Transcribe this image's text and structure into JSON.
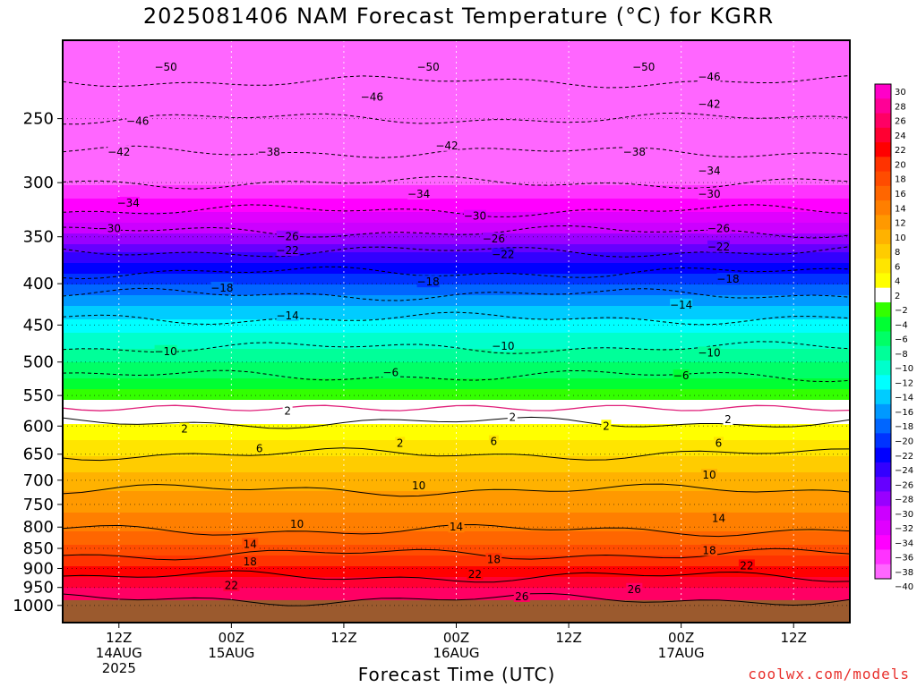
{
  "title": "2025081406 NAM Forecast Temperature (°C) for KGRR",
  "xlabel": "Forecast Time (UTC)",
  "credit": "coolwx.com/models",
  "chart_data": {
    "type": "heatmap",
    "title": "2025081406 NAM Forecast Temperature (°C) for KGRR",
    "xlabel": "Forecast Time (UTC)",
    "ylabel": "",
    "y_axis": {
      "scale": "log-pressure",
      "ylim_hpa": [
        1050,
        200
      ],
      "ticks": [
        250,
        300,
        350,
        400,
        450,
        500,
        550,
        600,
        650,
        700,
        750,
        800,
        850,
        900,
        950,
        1000
      ]
    },
    "x_axis": {
      "range_forecast_hours": [
        0,
        84
      ],
      "ticks": [
        {
          "hour": 6,
          "lines": [
            "12Z",
            "14AUG",
            "2025"
          ]
        },
        {
          "hour": 18,
          "lines": [
            "00Z",
            "15AUG"
          ]
        },
        {
          "hour": 30,
          "lines": [
            "12Z"
          ]
        },
        {
          "hour": 42,
          "lines": [
            "00Z",
            "16AUG"
          ]
        },
        {
          "hour": 54,
          "lines": [
            "12Z"
          ]
        },
        {
          "hour": 66,
          "lines": [
            "00Z",
            "17AUG"
          ]
        },
        {
          "hour": 78,
          "lines": [
            "12Z"
          ]
        }
      ]
    },
    "grid": true,
    "colorbar": {
      "placement": "right",
      "levels": [
        30,
        28,
        26,
        24,
        22,
        20,
        18,
        16,
        14,
        12,
        10,
        8,
        6,
        4,
        2,
        -2,
        -4,
        -6,
        -8,
        -10,
        -12,
        -14,
        -16,
        -18,
        -20,
        -22,
        -24,
        -26,
        -28,
        -30,
        -32,
        -34,
        -36,
        -38,
        -40
      ],
      "colors": [
        "#ff00c8",
        "#ff0096",
        "#ff0064",
        "#ff0032",
        "#ff0000",
        "#ff3300",
        "#ff4c00",
        "#ff6600",
        "#ff7f00",
        "#ff9900",
        "#ffb200",
        "#ffcc00",
        "#ffe500",
        "#ffff00",
        "#ffffff",
        "#33ff00",
        "#00ff33",
        "#00ff66",
        "#00ff99",
        "#00ffcc",
        "#00ffff",
        "#00ccff",
        "#0099ff",
        "#0066ff",
        "#0033ff",
        "#0000ff",
        "#3300ff",
        "#6600ff",
        "#9900ff",
        "#cc00ff",
        "#e000ff",
        "#ff00ff",
        "#ff33ff",
        "#ff66ff"
      ]
    },
    "temperature_profile": [
      {
        "p": 200,
        "t": -54
      },
      {
        "p": 225,
        "t": -50
      },
      {
        "p": 250,
        "t": -46
      },
      {
        "p": 275,
        "t": -42
      },
      {
        "p": 300,
        "t": -38
      },
      {
        "p": 325,
        "t": -34
      },
      {
        "p": 350,
        "t": -29
      },
      {
        "p": 375,
        "t": -24
      },
      {
        "p": 400,
        "t": -20
      },
      {
        "p": 425,
        "t": -16
      },
      {
        "p": 450,
        "t": -13
      },
      {
        "p": 500,
        "t": -8
      },
      {
        "p": 550,
        "t": -3
      },
      {
        "p": 570,
        "t": 0
      },
      {
        "p": 600,
        "t": 2.5
      },
      {
        "p": 650,
        "t": 6
      },
      {
        "p": 700,
        "t": 9
      },
      {
        "p": 750,
        "t": 11.5
      },
      {
        "p": 800,
        "t": 13.5
      },
      {
        "p": 850,
        "t": 17
      },
      {
        "p": 900,
        "t": 20.5
      },
      {
        "p": 950,
        "t": 24
      },
      {
        "p": 1000,
        "t": 27
      }
    ],
    "ground": {
      "pressure_hpa": 985,
      "color": "#9b5a2e"
    },
    "contour_labels": [
      {
        "value": "-50",
        "h": 11,
        "p": 216
      },
      {
        "value": "-50",
        "h": 39,
        "p": 216
      },
      {
        "value": "-50",
        "h": 62,
        "p": 216
      },
      {
        "value": "-46",
        "h": 69,
        "p": 222
      },
      {
        "value": "-46",
        "h": 33,
        "p": 235
      },
      {
        "value": "-46",
        "h": 8,
        "p": 252
      },
      {
        "value": "-42",
        "h": 69,
        "p": 240
      },
      {
        "value": "-42",
        "h": 6,
        "p": 275
      },
      {
        "value": "-42",
        "h": 41,
        "p": 270
      },
      {
        "value": "-38",
        "h": 22,
        "p": 275
      },
      {
        "value": "-38",
        "h": 61,
        "p": 275
      },
      {
        "value": "-34",
        "h": 69,
        "p": 290
      },
      {
        "value": "-34",
        "h": 7,
        "p": 318
      },
      {
        "value": "-34",
        "h": 38,
        "p": 310
      },
      {
        "value": "-30",
        "h": 5,
        "p": 342
      },
      {
        "value": "-30",
        "h": 44,
        "p": 330
      },
      {
        "value": "-30",
        "h": 69,
        "p": 310
      },
      {
        "value": "-26",
        "h": 24,
        "p": 350
      },
      {
        "value": "-26",
        "h": 46,
        "p": 352
      },
      {
        "value": "-26",
        "h": 70,
        "p": 342
      },
      {
        "value": "-22",
        "h": 24,
        "p": 364
      },
      {
        "value": "-22",
        "h": 47,
        "p": 368
      },
      {
        "value": "-22",
        "h": 70,
        "p": 360
      },
      {
        "value": "-18",
        "h": 17,
        "p": 405
      },
      {
        "value": "-18",
        "h": 39,
        "p": 398
      },
      {
        "value": "-18",
        "h": 71,
        "p": 395
      },
      {
        "value": "-14",
        "h": 24,
        "p": 438
      },
      {
        "value": "-14",
        "h": 66,
        "p": 425
      },
      {
        "value": "-10",
        "h": 11,
        "p": 485
      },
      {
        "value": "-10",
        "h": 47,
        "p": 478
      },
      {
        "value": "-10",
        "h": 69,
        "p": 487
      },
      {
        "value": "-6",
        "h": 35,
        "p": 515
      },
      {
        "value": "-6",
        "h": 66,
        "p": 520
      },
      {
        "value": "2",
        "h": 24,
        "p": 575
      },
      {
        "value": "2",
        "h": 48,
        "p": 585
      },
      {
        "value": "2",
        "h": 71,
        "p": 589
      },
      {
        "value": "2",
        "h": 13,
        "p": 605
      },
      {
        "value": "2",
        "h": 36,
        "p": 630
      },
      {
        "value": "2",
        "h": 58,
        "p": 600
      },
      {
        "value": "6",
        "h": 21,
        "p": 640
      },
      {
        "value": "6",
        "h": 46,
        "p": 627
      },
      {
        "value": "6",
        "h": 70,
        "p": 630
      },
      {
        "value": "10",
        "h": 38,
        "p": 711
      },
      {
        "value": "10",
        "h": 69,
        "p": 690
      },
      {
        "value": "10",
        "h": 25,
        "p": 793
      },
      {
        "value": "14",
        "h": 20,
        "p": 840
      },
      {
        "value": "14",
        "h": 42,
        "p": 800
      },
      {
        "value": "14",
        "h": 70,
        "p": 780
      },
      {
        "value": "18",
        "h": 20,
        "p": 883
      },
      {
        "value": "18",
        "h": 46,
        "p": 877
      },
      {
        "value": "18",
        "h": 69,
        "p": 855
      },
      {
        "value": "22",
        "h": 18,
        "p": 945
      },
      {
        "value": "22",
        "h": 44,
        "p": 915
      },
      {
        "value": "22",
        "h": 73,
        "p": 893
      },
      {
        "value": "26",
        "h": 49,
        "p": 975
      },
      {
        "value": "26",
        "h": 61,
        "p": 955
      }
    ]
  }
}
